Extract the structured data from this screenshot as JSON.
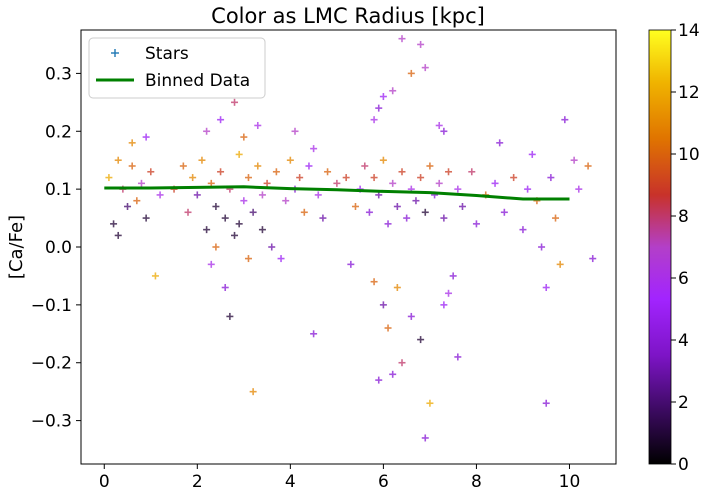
{
  "chart_data": {
    "type": "scatter",
    "title": "Color as LMC Radius [kpc]",
    "xlabel": "",
    "ylabel": "[Ca/Fe]",
    "xlim": [
      -0.5,
      11.0
    ],
    "ylim": [
      -0.375,
      0.375
    ],
    "x_ticks": [
      0,
      2,
      4,
      6,
      8,
      10
    ],
    "y_ticks": [
      -0.3,
      -0.2,
      -0.1,
      0.0,
      0.1,
      0.2,
      0.3
    ],
    "y_tick_labels": [
      "−0.3",
      "−0.2",
      "−0.1",
      "0.0",
      "0.1",
      "0.2",
      "0.3"
    ],
    "grid": false,
    "legend": {
      "placement": "top-left",
      "entries": [
        "Stars",
        "Binned Data"
      ]
    },
    "colorbar": {
      "colormap": "gnuplot",
      "range": [
        0,
        14
      ],
      "ticks": [
        0,
        2,
        4,
        6,
        8,
        10,
        12,
        14
      ]
    },
    "series": [
      {
        "name": "Stars",
        "kind": "scatter",
        "marker": "plus",
        "points": [
          [
            0.1,
            0.12,
            12
          ],
          [
            0.2,
            0.04,
            1
          ],
          [
            0.3,
            0.15,
            11
          ],
          [
            0.4,
            0.1,
            8
          ],
          [
            0.5,
            0.07,
            2
          ],
          [
            0.6,
            0.14,
            10
          ],
          [
            0.7,
            0.08,
            10
          ],
          [
            0.8,
            0.11,
            7
          ],
          [
            0.9,
            0.05,
            1
          ],
          [
            1.0,
            0.13,
            9
          ],
          [
            1.1,
            -0.05,
            12
          ],
          [
            0.9,
            0.19,
            5
          ],
          [
            1.2,
            0.09,
            6
          ],
          [
            0.3,
            0.02,
            1
          ],
          [
            0.6,
            0.18,
            11
          ],
          [
            1.5,
            0.1,
            9
          ],
          [
            1.7,
            0.14,
            10
          ],
          [
            1.8,
            0.06,
            8
          ],
          [
            1.9,
            0.12,
            11
          ],
          [
            2.0,
            0.09,
            3
          ],
          [
            2.1,
            0.15,
            11
          ],
          [
            2.2,
            0.03,
            1
          ],
          [
            2.3,
            0.11,
            10
          ],
          [
            2.4,
            0.07,
            1
          ],
          [
            2.5,
            0.13,
            9
          ],
          [
            2.6,
            0.05,
            1
          ],
          [
            2.7,
            0.1,
            8
          ],
          [
            2.8,
            0.02,
            1
          ],
          [
            2.9,
            0.16,
            12
          ],
          [
            3.0,
            0.08,
            6
          ],
          [
            3.1,
            0.12,
            10
          ],
          [
            3.2,
            0.06,
            2
          ],
          [
            3.3,
            0.14,
            11
          ],
          [
            3.4,
            0.09,
            7
          ],
          [
            3.5,
            0.11,
            9
          ],
          [
            2.2,
            0.2,
            7
          ],
          [
            2.5,
            0.22,
            5
          ],
          [
            2.8,
            0.25,
            8
          ],
          [
            3.0,
            0.19,
            10
          ],
          [
            3.3,
            0.21,
            6
          ],
          [
            2.6,
            -0.07,
            4
          ],
          [
            2.7,
            -0.12,
            1
          ],
          [
            3.2,
            -0.25,
            11
          ],
          [
            3.8,
            -0.02,
            5
          ],
          [
            3.6,
            0.0,
            3
          ],
          [
            2.4,
            0.0,
            10
          ],
          [
            2.9,
            0.04,
            1
          ],
          [
            3.1,
            -0.02,
            10
          ],
          [
            2.3,
            -0.03,
            6
          ],
          [
            3.4,
            0.03,
            1
          ],
          [
            3.7,
            0.13,
            10
          ],
          [
            3.9,
            0.08,
            7
          ],
          [
            4.0,
            0.15,
            11
          ],
          [
            4.1,
            0.1,
            4
          ],
          [
            4.2,
            0.12,
            9
          ],
          [
            4.3,
            0.06,
            10
          ],
          [
            4.4,
            0.14,
            5
          ],
          [
            4.6,
            0.09,
            6
          ],
          [
            4.8,
            0.13,
            10
          ],
          [
            5.0,
            0.11,
            8
          ],
          [
            4.5,
            0.17,
            6
          ],
          [
            4.7,
            0.05,
            3
          ],
          [
            5.2,
            0.12,
            9
          ],
          [
            5.4,
            0.07,
            10
          ],
          [
            4.5,
            -0.15,
            4
          ],
          [
            4.1,
            0.2,
            7
          ],
          [
            5.3,
            -0.03,
            4
          ],
          [
            5.5,
            0.1,
            5
          ],
          [
            5.6,
            0.14,
            8
          ],
          [
            5.7,
            0.06,
            4
          ],
          [
            5.8,
            0.12,
            9
          ],
          [
            5.9,
            0.09,
            3
          ],
          [
            6.0,
            0.15,
            11
          ],
          [
            6.1,
            0.04,
            4
          ],
          [
            6.2,
            0.11,
            7
          ],
          [
            6.3,
            0.07,
            3
          ],
          [
            6.4,
            0.13,
            9
          ],
          [
            6.5,
            0.05,
            4
          ],
          [
            6.6,
            0.1,
            6
          ],
          [
            6.7,
            0.08,
            3
          ],
          [
            6.8,
            0.12,
            9
          ],
          [
            6.9,
            0.06,
            1
          ],
          [
            7.0,
            0.14,
            10
          ],
          [
            7.1,
            0.09,
            4
          ],
          [
            7.2,
            0.11,
            7
          ],
          [
            7.3,
            0.05,
            3
          ],
          [
            7.4,
            0.13,
            9
          ],
          [
            5.8,
            0.22,
            6
          ],
          [
            6.0,
            0.26,
            5
          ],
          [
            6.4,
            0.36,
            7
          ],
          [
            6.8,
            0.35,
            7
          ],
          [
            6.6,
            0.3,
            10
          ],
          [
            6.9,
            0.31,
            7
          ],
          [
            7.2,
            0.21,
            6
          ],
          [
            7.3,
            0.2,
            4
          ],
          [
            6.2,
            0.27,
            7
          ],
          [
            5.9,
            0.24,
            4
          ],
          [
            5.8,
            -0.06,
            10
          ],
          [
            6.0,
            -0.1,
            3
          ],
          [
            6.1,
            -0.14,
            10
          ],
          [
            6.3,
            -0.07,
            11
          ],
          [
            6.4,
            -0.2,
            8
          ],
          [
            6.6,
            -0.12,
            4
          ],
          [
            6.8,
            -0.16,
            1
          ],
          [
            6.9,
            -0.33,
            4
          ],
          [
            7.0,
            -0.27,
            12
          ],
          [
            7.3,
            -0.1,
            5
          ],
          [
            7.5,
            -0.05,
            4
          ],
          [
            7.6,
            -0.19,
            4
          ],
          [
            5.9,
            -0.23,
            4
          ],
          [
            6.2,
            -0.22,
            4
          ],
          [
            7.4,
            -0.08,
            6
          ],
          [
            7.6,
            0.1,
            6
          ],
          [
            7.7,
            0.07,
            3
          ],
          [
            7.9,
            0.13,
            8
          ],
          [
            8.0,
            0.04,
            4
          ],
          [
            8.2,
            0.09,
            10
          ],
          [
            8.4,
            0.11,
            5
          ],
          [
            8.6,
            0.06,
            4
          ],
          [
            8.8,
            0.12,
            9
          ],
          [
            9.0,
            0.03,
            4
          ],
          [
            9.2,
            0.16,
            5
          ],
          [
            9.3,
            0.08,
            10
          ],
          [
            9.4,
            0.0,
            4
          ],
          [
            9.5,
            -0.07,
            5
          ],
          [
            9.5,
            -0.27,
            4
          ],
          [
            9.6,
            0.12,
            4
          ],
          [
            9.7,
            0.05,
            10
          ],
          [
            9.8,
            -0.03,
            11
          ],
          [
            9.9,
            0.22,
            4
          ],
          [
            10.1,
            0.15,
            7
          ],
          [
            10.2,
            0.1,
            6
          ],
          [
            10.4,
            0.14,
            10
          ],
          [
            10.5,
            -0.02,
            4
          ],
          [
            8.5,
            0.18,
            4
          ],
          [
            9.1,
            0.1,
            5
          ]
        ]
      },
      {
        "name": "Binned Data",
        "kind": "line",
        "color": "#008000",
        "x": [
          0,
          1,
          2,
          3,
          4,
          5,
          6,
          7,
          8,
          9,
          10
        ],
        "values": [
          0.102,
          0.102,
          0.103,
          0.104,
          0.101,
          0.099,
          0.096,
          0.094,
          0.089,
          0.083,
          0.083
        ]
      }
    ]
  }
}
